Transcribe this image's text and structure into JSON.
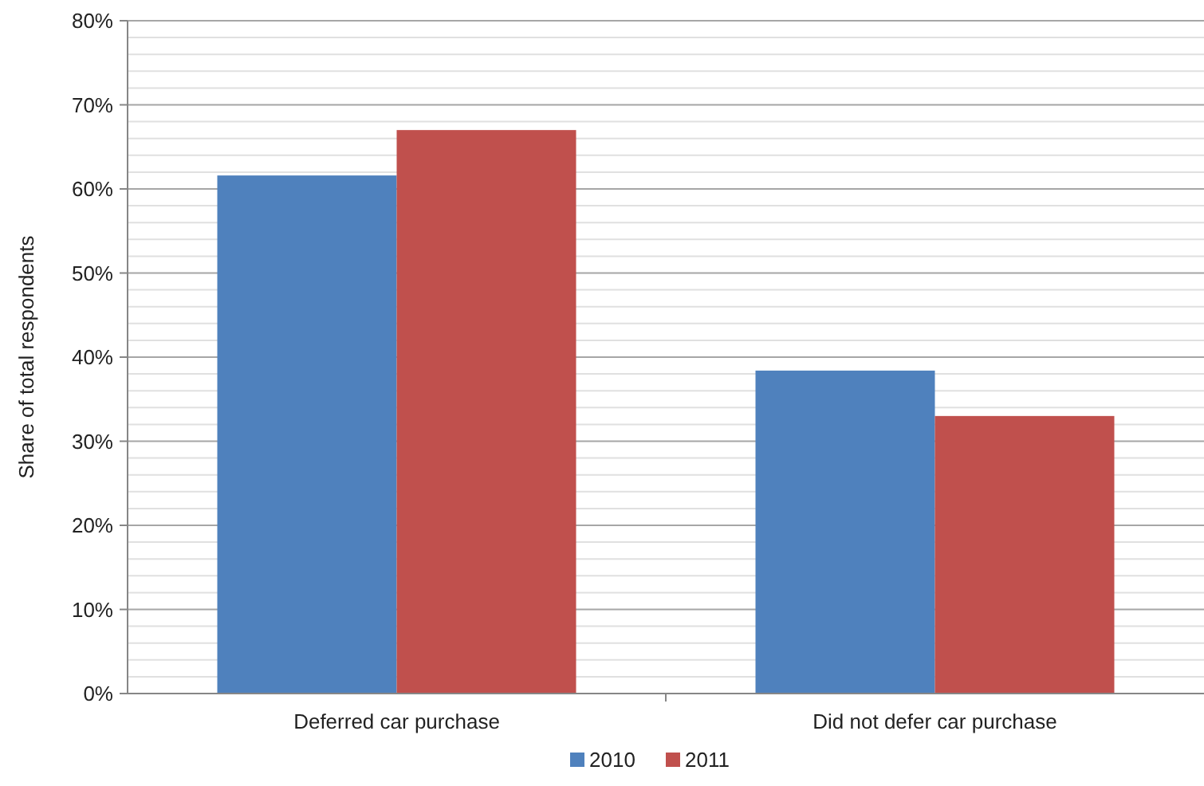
{
  "chart_data": {
    "type": "bar",
    "ylabel": "Share of total respondents",
    "categories": [
      "Deferred car purchase",
      "Did not defer car purchase"
    ],
    "series": [
      {
        "name": "2010",
        "color": "#4f81bd",
        "values": [
          61.6,
          38.4
        ]
      },
      {
        "name": "2011",
        "color": "#c0504d",
        "values": [
          67,
          33
        ]
      }
    ],
    "ylim": [
      0,
      80
    ],
    "yticks": [
      {
        "value": 0,
        "label": "0%"
      },
      {
        "value": 2,
        "label": null
      },
      {
        "value": 4,
        "label": null
      },
      {
        "value": 6,
        "label": null
      },
      {
        "value": 8,
        "label": null
      },
      {
        "value": 10,
        "label": "10%"
      },
      {
        "value": 12,
        "label": null
      },
      {
        "value": 14,
        "label": null
      },
      {
        "value": 16,
        "label": null
      },
      {
        "value": 18,
        "label": null
      },
      {
        "value": 20,
        "label": "20%"
      },
      {
        "value": 22,
        "label": null
      },
      {
        "value": 24,
        "label": null
      },
      {
        "value": 26,
        "label": null
      },
      {
        "value": 28,
        "label": null
      },
      {
        "value": 30,
        "label": "30%"
      },
      {
        "value": 32,
        "label": null
      },
      {
        "value": 34,
        "label": null
      },
      {
        "value": 36,
        "label": null
      },
      {
        "value": 38,
        "label": null
      },
      {
        "value": 40,
        "label": "40%"
      },
      {
        "value": 42,
        "label": null
      },
      {
        "value": 44,
        "label": null
      },
      {
        "value": 46,
        "label": null
      },
      {
        "value": 48,
        "label": null
      },
      {
        "value": 50,
        "label": "50%"
      },
      {
        "value": 52,
        "label": null
      },
      {
        "value": 54,
        "label": null
      },
      {
        "value": 56,
        "label": null
      },
      {
        "value": 58,
        "label": null
      },
      {
        "value": 60,
        "label": "60%"
      },
      {
        "value": 62,
        "label": null
      },
      {
        "value": 64,
        "label": null
      },
      {
        "value": 66,
        "label": null
      },
      {
        "value": 68,
        "label": null
      },
      {
        "value": 70,
        "label": "70%"
      },
      {
        "value": 72,
        "label": null
      },
      {
        "value": 74,
        "label": null
      },
      {
        "value": 76,
        "label": null
      },
      {
        "value": 78,
        "label": null
      },
      {
        "value": 80,
        "label": "80%"
      }
    ],
    "grid": true,
    "legend": "bottom"
  }
}
